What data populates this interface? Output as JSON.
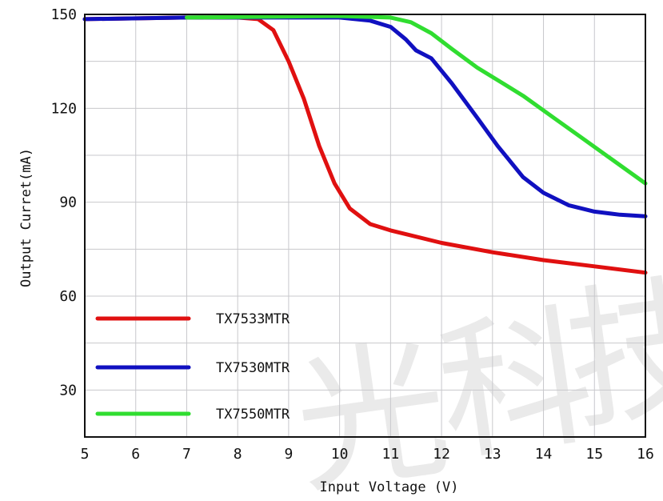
{
  "chart_data": {
    "type": "line",
    "title": "",
    "xlabel": "Input Voltage (V)",
    "ylabel": "Output Curret(mA)",
    "xlim": [
      5,
      16
    ],
    "ylim": [
      15,
      150
    ],
    "x_ticks": [
      5,
      6,
      7,
      8,
      9,
      10,
      11,
      12,
      13,
      14,
      15,
      16
    ],
    "y_ticks": [
      30,
      60,
      90,
      120,
      150
    ],
    "grid": true,
    "legend_position": "bottom-left",
    "series": [
      {
        "name": "TX7533MTR",
        "color": "#e01010",
        "points": [
          [
            5,
            148.5
          ],
          [
            7,
            149
          ],
          [
            8,
            149
          ],
          [
            8.4,
            148.5
          ],
          [
            8.7,
            145
          ],
          [
            9,
            135
          ],
          [
            9.3,
            123
          ],
          [
            9.6,
            108
          ],
          [
            9.9,
            96
          ],
          [
            10.2,
            88
          ],
          [
            10.6,
            83
          ],
          [
            11,
            81
          ],
          [
            12,
            77
          ],
          [
            13,
            74
          ],
          [
            14,
            71.5
          ],
          [
            15,
            69.5
          ],
          [
            16,
            67.5
          ]
        ]
      },
      {
        "name": "TX7530MTR",
        "color": "#1010c0",
        "points": [
          [
            5,
            148.5
          ],
          [
            7,
            149
          ],
          [
            8,
            149
          ],
          [
            10,
            149
          ],
          [
            10.6,
            148
          ],
          [
            11,
            146
          ],
          [
            11.3,
            142
          ],
          [
            11.5,
            138.5
          ],
          [
            11.8,
            136
          ],
          [
            12.2,
            128
          ],
          [
            12.7,
            117
          ],
          [
            13.1,
            108
          ],
          [
            13.6,
            98
          ],
          [
            14,
            93
          ],
          [
            14.5,
            89
          ],
          [
            15,
            87
          ],
          [
            15.5,
            86
          ],
          [
            16,
            85.5
          ]
        ]
      },
      {
        "name": "TX7550MTR",
        "color": "#30dd30",
        "points": [
          [
            7,
            149
          ],
          [
            10,
            149.5
          ],
          [
            11,
            149
          ],
          [
            11.4,
            147.5
          ],
          [
            11.8,
            144
          ],
          [
            12.2,
            139
          ],
          [
            12.7,
            133
          ],
          [
            13.2,
            128
          ],
          [
            13.6,
            124
          ],
          [
            14.2,
            117
          ],
          [
            14.8,
            110
          ],
          [
            15.4,
            103
          ],
          [
            16,
            96
          ]
        ]
      }
    ]
  }
}
